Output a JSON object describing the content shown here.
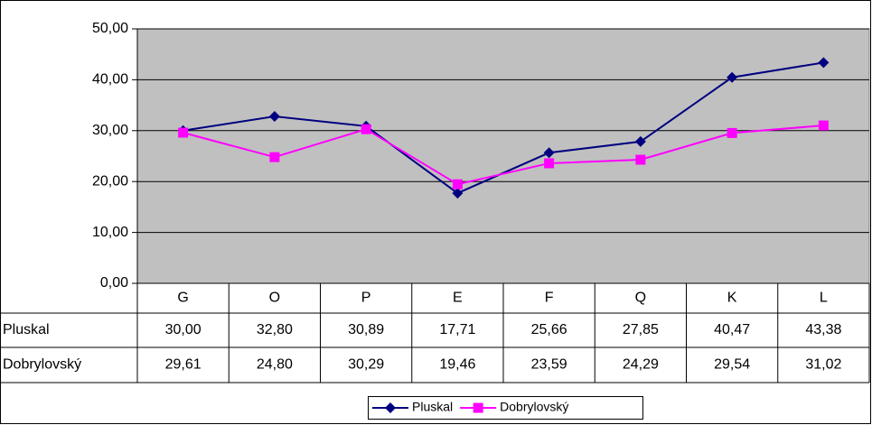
{
  "chart_data": {
    "type": "line",
    "categories": [
      "G",
      "O",
      "P",
      "E",
      "F",
      "Q",
      "K",
      "L"
    ],
    "series": [
      {
        "name": "Pluskal",
        "color": "#000080",
        "marker": "diamond",
        "values": [
          30.0,
          32.8,
          30.89,
          17.71,
          25.66,
          27.85,
          40.47,
          43.38
        ],
        "value_labels": [
          "30,00",
          "32,80",
          "30,89",
          "17,71",
          "25,66",
          "27,85",
          "40,47",
          "43,38"
        ]
      },
      {
        "name": "Dobrylovský",
        "color": "#ff00ff",
        "marker": "square",
        "values": [
          29.61,
          24.8,
          30.29,
          19.46,
          23.59,
          24.29,
          29.54,
          31.02
        ],
        "value_labels": [
          "29,61",
          "24,80",
          "30,29",
          "19,46",
          "23,59",
          "24,29",
          "29,54",
          "31,02"
        ]
      }
    ],
    "ylim": [
      0,
      50
    ],
    "yticks": [
      {
        "value": 0,
        "label": "0,00"
      },
      {
        "value": 10,
        "label": "10,00"
      },
      {
        "value": 20,
        "label": "20,00"
      },
      {
        "value": 30,
        "label": "30,00"
      },
      {
        "value": 40,
        "label": "40,00"
      },
      {
        "value": 50,
        "label": "50,00"
      }
    ],
    "grid": true,
    "plot_background": "#c0c0c0",
    "data_table": true,
    "legend": "bottom"
  }
}
